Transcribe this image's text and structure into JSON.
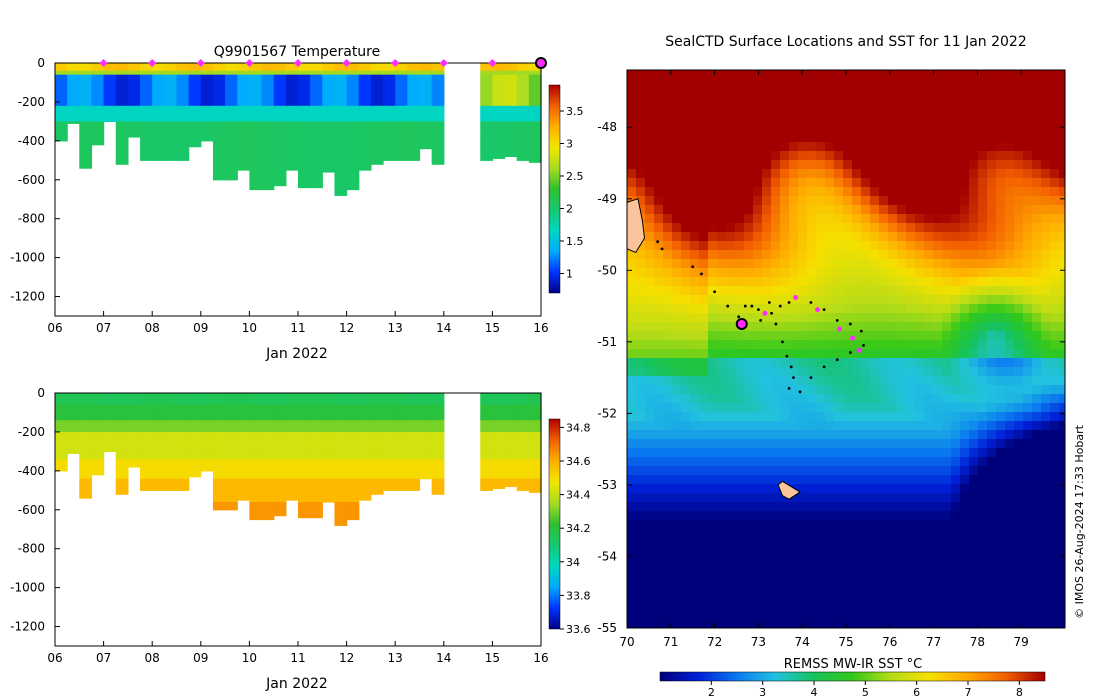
{
  "chart_data": [
    {
      "type": "heatmap",
      "title": "Q9901567  Temperature",
      "variable": "temperature",
      "xlabel": "Jan 2022",
      "ylabel": "",
      "xlim": [
        6,
        16
      ],
      "ylim": [
        -1300,
        0
      ],
      "x_ticks": [
        "06",
        "07",
        "08",
        "09",
        "10",
        "11",
        "12",
        "13",
        "14",
        "15",
        "16"
      ],
      "y_ticks": [
        "0",
        "-200",
        "-400",
        "-600",
        "-800",
        "-1000",
        "-1200"
      ],
      "y_tick_values": [
        0,
        -200,
        -400,
        -600,
        -800,
        -1000,
        -1200
      ],
      "colorbar": {
        "range": [
          0.7,
          3.9
        ],
        "ticks": [
          "1",
          "1.5",
          "2",
          "2.5",
          "3",
          "3.5"
        ],
        "tick_values": [
          1,
          1.5,
          2,
          2.5,
          3,
          3.5
        ]
      },
      "surface_marker_days": [
        7,
        8,
        9,
        10,
        11,
        12,
        13,
        14,
        15
      ],
      "latest_marker_day": 16,
      "data_gap_days": [
        14.1,
        14.55
      ],
      "profile_max_depths": [
        -400,
        -310,
        -540,
        -420,
        -300,
        -520,
        -380,
        -500,
        -500,
        -500,
        -500,
        -430,
        -400,
        -600,
        -600,
        -550,
        -650,
        -650,
        -630,
        -550,
        -640,
        -640,
        -560,
        -680,
        -650,
        -550,
        -520,
        -500,
        -500,
        -500,
        -440,
        -520,
        -420,
        -400,
        -500,
        -500,
        -490,
        -480,
        -500,
        -510
      ]
    },
    {
      "type": "heatmap",
      "title": "",
      "variable": "salinity",
      "xlabel": "Jan 2022",
      "ylabel": "",
      "xlim": [
        6,
        16
      ],
      "ylim": [
        -1300,
        0
      ],
      "x_ticks": [
        "06",
        "07",
        "08",
        "09",
        "10",
        "11",
        "12",
        "13",
        "14",
        "15",
        "16"
      ],
      "y_ticks": [
        "0",
        "-200",
        "-400",
        "-600",
        "-800",
        "-1000",
        "-1200"
      ],
      "y_tick_values": [
        0,
        -200,
        -400,
        -600,
        -800,
        -1000,
        -1200
      ],
      "colorbar": {
        "range": [
          33.6,
          34.85
        ],
        "ticks": [
          "33.6",
          "33.8",
          "34",
          "34.2",
          "34.4",
          "34.6",
          "34.8"
        ],
        "tick_values": [
          33.6,
          33.8,
          34,
          34.2,
          34.4,
          34.6,
          34.8
        ]
      }
    },
    {
      "type": "heatmap",
      "title": "SealCTD Surface Locations and SST for 11 Jan 2022",
      "variable": "sst",
      "xlabel": "",
      "ylabel": "",
      "xlim": [
        70,
        80
      ],
      "ylim": [
        -55,
        -47.2
      ],
      "x_ticks": [
        "70",
        "71",
        "72",
        "73",
        "74",
        "75",
        "76",
        "77",
        "78",
        "79"
      ],
      "x_tick_values": [
        70,
        71,
        72,
        73,
        74,
        75,
        76,
        77,
        78,
        79
      ],
      "y_ticks": [
        "-48",
        "-49",
        "-50",
        "-51",
        "-52",
        "-53",
        "-54",
        "-55"
      ],
      "y_tick_values": [
        -48,
        -49,
        -50,
        -51,
        -52,
        -53,
        -54,
        -55
      ],
      "colorbar": {
        "label": "REMSS MW-IR SST °C",
        "range": [
          1,
          8.5
        ],
        "ticks": [
          "2",
          "3",
          "4",
          "5",
          "6",
          "7",
          "8"
        ],
        "tick_values": [
          2,
          3,
          4,
          5,
          6,
          7,
          8
        ]
      },
      "track_points": [
        [
          70.7,
          -49.6
        ],
        [
          70.8,
          -49.7
        ],
        [
          71.5,
          -49.95
        ],
        [
          71.7,
          -50.05
        ],
        [
          72.0,
          -50.3
        ],
        [
          72.3,
          -50.5
        ],
        [
          72.55,
          -50.65
        ],
        [
          72.7,
          -50.5
        ],
        [
          73.0,
          -50.55
        ],
        [
          73.3,
          -50.6
        ],
        [
          73.4,
          -50.75
        ],
        [
          73.55,
          -51.0
        ],
        [
          73.65,
          -51.2
        ],
        [
          73.75,
          -51.35
        ],
        [
          73.8,
          -51.5
        ],
        [
          73.7,
          -51.65
        ],
        [
          73.95,
          -51.7
        ],
        [
          74.2,
          -51.5
        ],
        [
          74.5,
          -51.35
        ],
        [
          74.8,
          -51.25
        ],
        [
          75.1,
          -51.15
        ],
        [
          75.4,
          -51.05
        ],
        [
          75.35,
          -50.85
        ],
        [
          75.1,
          -50.75
        ],
        [
          74.8,
          -50.7
        ],
        [
          74.5,
          -50.55
        ],
        [
          74.2,
          -50.45
        ],
        [
          73.7,
          -50.45
        ],
        [
          73.5,
          -50.5
        ],
        [
          73.25,
          -50.45
        ],
        [
          73.05,
          -50.7
        ],
        [
          72.85,
          -50.5
        ]
      ],
      "surface_points": [
        [
          73.15,
          -50.6
        ],
        [
          73.85,
          -50.38
        ],
        [
          74.35,
          -50.55
        ],
        [
          74.85,
          -50.82
        ],
        [
          75.15,
          -50.95
        ],
        [
          75.3,
          -51.12
        ]
      ],
      "latest_position": [
        72.62,
        -50.75
      ],
      "land_patches": [
        "Heard Island coast (western edge)",
        "McDonald Islands (~73.5E, -53.1)"
      ]
    }
  ],
  "credit": "© IMOS 26-Aug-2024 17:33 Hobart",
  "colors": {
    "temp_colormap": [
      "#000085",
      "#0033ff",
      "#00aaff",
      "#00d6c0",
      "#16c870",
      "#2fc030",
      "#a9dc20",
      "#f2e600",
      "#ffb000",
      "#f06000",
      "#b00000"
    ],
    "sst_colormap": [
      "#00007a",
      "#0020d8",
      "#0a78f0",
      "#22c2e0",
      "#16c25a",
      "#32c81a",
      "#b6dc18",
      "#f6e000",
      "#ffa800",
      "#f25c00",
      "#a00000"
    ],
    "marker_magenta": "#ff2cff",
    "land": "#fbc49d"
  }
}
